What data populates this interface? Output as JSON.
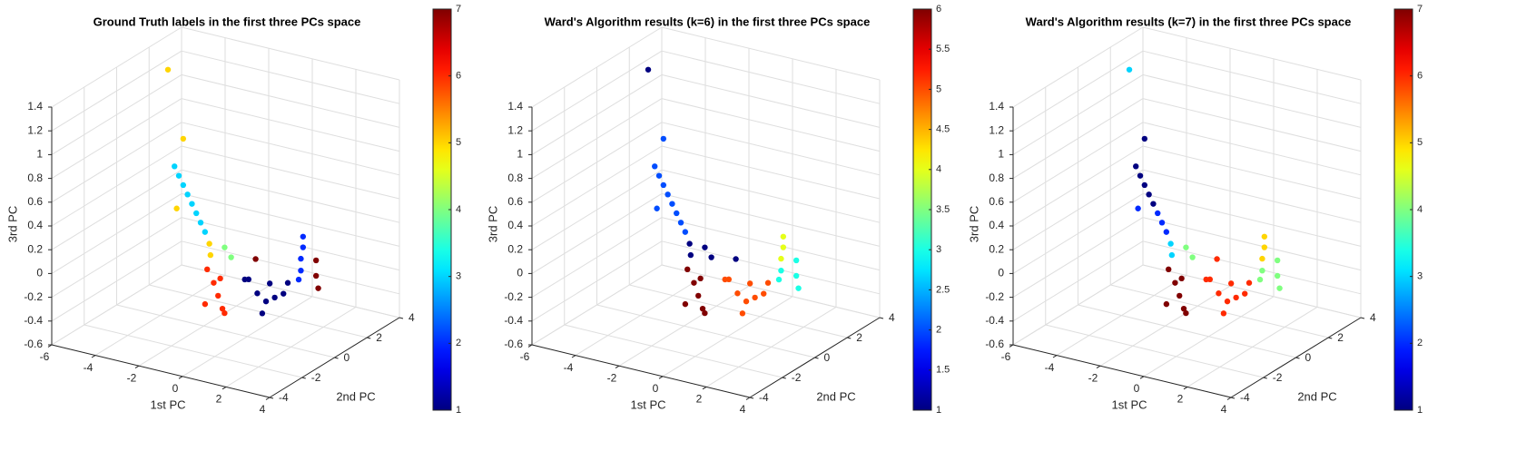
{
  "chart_data": [
    {
      "type": "scatter3d",
      "title": "Ground Truth labels in the first three PCs space",
      "xlabel": "1st PC",
      "ylabel": "2nd PC",
      "zlabel": "3rd PC",
      "xlim": [
        -6,
        4
      ],
      "xticks": [
        -6,
        -4,
        -2,
        0,
        2,
        4
      ],
      "ylim": [
        -4,
        4
      ],
      "yticks": [
        -4,
        -2,
        0,
        2,
        4
      ],
      "zlim": [
        -0.6,
        1.4
      ],
      "zticks": [
        -0.6,
        -0.4,
        -0.2,
        0,
        0.2,
        0.4,
        0.6,
        0.8,
        1,
        1.2,
        1.4
      ],
      "grid": true,
      "colormap": "jet",
      "clim": [
        1,
        7
      ],
      "cticks": [
        1,
        2,
        3,
        4,
        5,
        6,
        7
      ],
      "x": [
        -2.6,
        -2.4,
        -2.2,
        -2.0,
        -1.8,
        -1.6,
        -1.4,
        -1.2,
        -2.9,
        -2.2,
        -2.5,
        -1.0,
        -0.8,
        -0.3,
        0,
        -0.8,
        -0.6,
        -0.4,
        -0.6,
        -0.9,
        -0.5,
        -1.1,
        0.8,
        1.2,
        1.6,
        2.0,
        2.4,
        1.4,
        1.8,
        2.6,
        1.0,
        3.3,
        3.3,
        3.2,
        3.2,
        3.1,
        3.6,
        3.6,
        3.7,
        0.9
      ],
      "y": [
        -1,
        -1,
        -1,
        -1,
        -1,
        -1,
        -1,
        -1,
        -1,
        -1,
        -1,
        -1,
        -1.2,
        -1,
        -1,
        -1,
        -1,
        -1,
        -0.6,
        -1.4,
        -1,
        -1,
        -1,
        -1,
        -1,
        -1,
        -1,
        -0.5,
        -1.5,
        -1,
        -1.5,
        -1,
        -1,
        -1,
        -1,
        -1,
        -0.6,
        -0.6,
        -0.6,
        -0.7
      ],
      "z": [
        0.8,
        0.73,
        0.66,
        0.59,
        0.52,
        0.45,
        0.38,
        0.31,
        1.6,
        1.05,
        0.45,
        0.22,
        0.15,
        0.22,
        0.15,
        -0.1,
        -0.2,
        -0.3,
        -0.38,
        -0.25,
        -0.05,
        0.0,
        0.0,
        -0.1,
        -0.15,
        -0.1,
        -0.05,
        -0.05,
        -0.2,
        0.05,
        0.05,
        0.47,
        0.38,
        0.28,
        0.18,
        0.1,
        0.25,
        0.12,
        0.02,
        0.15
      ],
      "c": [
        3,
        3,
        3,
        3,
        3,
        3,
        3,
        3,
        5,
        5,
        5,
        5,
        5,
        4,
        4,
        6,
        6,
        6,
        6,
        6,
        6,
        6,
        1,
        1,
        1,
        1,
        1,
        1,
        1,
        1,
        1,
        2,
        2,
        2,
        2,
        2,
        7,
        7,
        7,
        7
      ]
    },
    {
      "type": "scatter3d",
      "title": "Ward's Algorithm results (k=6) in the first three PCs space",
      "xlabel": "1st PC",
      "ylabel": "2nd PC",
      "zlabel": "3rd PC",
      "xlim": [
        -6,
        4
      ],
      "xticks": [
        -6,
        -4,
        -2,
        0,
        2,
        4
      ],
      "ylim": [
        -4,
        4
      ],
      "yticks": [
        -4,
        -2,
        0,
        2,
        4
      ],
      "zlim": [
        -0.6,
        1.4
      ],
      "zticks": [
        -0.6,
        -0.4,
        -0.2,
        0,
        0.2,
        0.4,
        0.6,
        0.8,
        1,
        1.2,
        1.4
      ],
      "grid": true,
      "colormap": "jet",
      "clim": [
        1,
        6
      ],
      "cticks": [
        1,
        1.5,
        2,
        2.5,
        3,
        3.5,
        4,
        4.5,
        5,
        5.5,
        6
      ],
      "x": [
        -2.6,
        -2.4,
        -2.2,
        -2.0,
        -1.8,
        -1.6,
        -1.4,
        -1.2,
        -2.9,
        -2.2,
        -2.5,
        -1.0,
        -0.8,
        -0.3,
        0,
        -0.8,
        -0.6,
        -0.4,
        -0.6,
        -0.9,
        -0.5,
        -1.1,
        0.8,
        1.2,
        1.6,
        2.0,
        2.4,
        1.4,
        1.8,
        2.6,
        1.0,
        3.3,
        3.3,
        3.2,
        3.2,
        3.1,
        3.6,
        3.6,
        3.7,
        0.9
      ],
      "y": [
        -1,
        -1,
        -1,
        -1,
        -1,
        -1,
        -1,
        -1,
        -1,
        -1,
        -1,
        -1,
        -1.2,
        -1,
        -1,
        -1,
        -1,
        -1,
        -0.6,
        -1.4,
        -1,
        -1,
        -1,
        -1,
        -1,
        -1,
        -1,
        -0.5,
        -1.5,
        -1,
        -1.5,
        -1,
        -1,
        -1,
        -1,
        -1,
        -0.6,
        -0.6,
        -0.6,
        -0.7
      ],
      "z": [
        0.8,
        0.73,
        0.66,
        0.59,
        0.52,
        0.45,
        0.38,
        0.31,
        1.6,
        1.05,
        0.45,
        0.22,
        0.15,
        0.22,
        0.15,
        -0.1,
        -0.2,
        -0.3,
        -0.38,
        -0.25,
        -0.05,
        0.0,
        0.0,
        -0.1,
        -0.15,
        -0.1,
        -0.05,
        -0.05,
        -0.2,
        0.05,
        0.05,
        0.47,
        0.38,
        0.28,
        0.18,
        0.1,
        0.25,
        0.12,
        0.02,
        0.15
      ],
      "c": [
        2,
        2,
        2,
        2,
        2,
        2,
        2,
        2,
        1,
        2,
        2,
        1,
        1,
        1,
        1,
        6,
        6,
        6,
        6,
        6,
        6,
        6,
        5,
        5,
        5,
        5,
        5,
        5,
        5,
        5,
        5,
        4,
        4,
        4,
        3,
        3,
        3,
        3,
        3,
        1
      ]
    },
    {
      "type": "scatter3d",
      "title": "Ward's Algorithm results (k=7) in the first three PCs space",
      "xlabel": "1st PC",
      "ylabel": "2nd PC",
      "zlabel": "3rd PC",
      "xlim": [
        -6,
        4
      ],
      "xticks": [
        -6,
        -4,
        -2,
        0,
        2,
        4
      ],
      "ylim": [
        -4,
        4
      ],
      "yticks": [
        -4,
        -2,
        0,
        2,
        4
      ],
      "zlim": [
        -0.6,
        1.4
      ],
      "zticks": [
        -0.6,
        -0.4,
        -0.2,
        0,
        0.2,
        0.4,
        0.6,
        0.8,
        1,
        1.2,
        1.4
      ],
      "grid": true,
      "colormap": "jet",
      "clim": [
        1,
        7
      ],
      "cticks": [
        1,
        2,
        3,
        4,
        5,
        6,
        7
      ],
      "x": [
        -2.6,
        -2.4,
        -2.2,
        -2.0,
        -1.8,
        -1.6,
        -1.4,
        -1.2,
        -2.9,
        -2.2,
        -2.5,
        -1.0,
        -0.8,
        -0.3,
        0,
        -0.8,
        -0.6,
        -0.4,
        -0.6,
        -0.9,
        -0.5,
        -1.1,
        0.8,
        1.2,
        1.6,
        2.0,
        2.4,
        1.4,
        1.8,
        2.6,
        1.0,
        3.3,
        3.3,
        3.2,
        3.2,
        3.1,
        3.6,
        3.6,
        3.7,
        0.9
      ],
      "y": [
        -1,
        -1,
        -1,
        -1,
        -1,
        -1,
        -1,
        -1,
        -1,
        -1,
        -1,
        -1,
        -1.2,
        -1,
        -1,
        -1,
        -1,
        -1,
        -0.6,
        -1.4,
        -1,
        -1,
        -1,
        -1,
        -1,
        -1,
        -1,
        -0.5,
        -1.5,
        -1,
        -1.5,
        -1,
        -1,
        -1,
        -1,
        -1,
        -0.6,
        -0.6,
        -0.6,
        -0.7
      ],
      "z": [
        0.8,
        0.73,
        0.66,
        0.59,
        0.52,
        0.45,
        0.38,
        0.31,
        1.6,
        1.05,
        0.45,
        0.22,
        0.15,
        0.22,
        0.15,
        -0.1,
        -0.2,
        -0.3,
        -0.38,
        -0.25,
        -0.05,
        0.0,
        0.0,
        -0.1,
        -0.15,
        -0.1,
        -0.05,
        -0.05,
        -0.2,
        0.05,
        0.05,
        0.47,
        0.38,
        0.28,
        0.18,
        0.1,
        0.25,
        0.12,
        0.02,
        0.15
      ],
      "c": [
        1,
        1,
        1,
        1,
        1,
        2,
        2,
        2,
        3,
        1,
        2,
        3,
        3,
        4,
        4,
        7,
        7,
        7,
        7,
        7,
        7,
        7,
        6,
        6,
        6,
        6,
        6,
        6,
        6,
        6,
        6,
        5,
        5,
        5,
        4,
        4,
        4,
        4,
        4,
        6
      ]
    }
  ]
}
